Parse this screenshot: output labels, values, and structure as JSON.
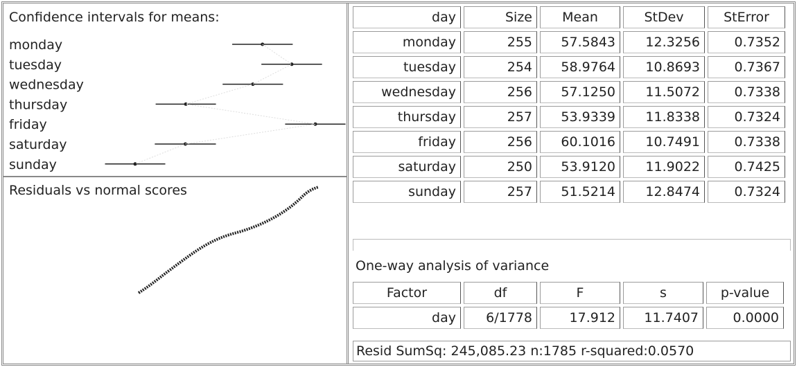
{
  "ci_panel": {
    "title": "Confidence intervals for means:"
  },
  "residual_panel": {
    "title": "Residuals vs normal scores"
  },
  "table": {
    "header": [
      "day",
      "Size",
      "Mean",
      "StDev",
      "StError"
    ],
    "rows": [
      [
        "monday",
        "255",
        "57.5843",
        "12.3256",
        "0.7352"
      ],
      [
        "tuesday",
        "254",
        "58.9764",
        "10.8693",
        "0.7367"
      ],
      [
        "wednesday",
        "256",
        "57.1250",
        "11.5072",
        "0.7338"
      ],
      [
        "thursday",
        "257",
        "53.9339",
        "11.8338",
        "0.7324"
      ],
      [
        "friday",
        "256",
        "60.1016",
        "10.7491",
        "0.7338"
      ],
      [
        "saturday",
        "250",
        "53.9120",
        "11.9022",
        "0.7425"
      ],
      [
        "sunday",
        "257",
        "51.5214",
        "12.8474",
        "0.7324"
      ]
    ]
  },
  "anova": {
    "title": "One-way analysis of variance",
    "header": [
      "Factor",
      "df",
      "F",
      "s",
      "p-value"
    ],
    "row": [
      "day",
      "6/1778",
      "17.912",
      "11.7407",
      "0.0000"
    ],
    "footer": "Resid SumSq: 245,085.23 n:1785 r-squared:0.0570"
  }
}
